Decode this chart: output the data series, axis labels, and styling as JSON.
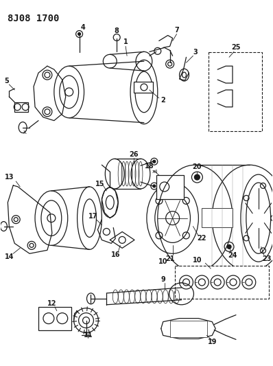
{
  "title": "8J08 1700",
  "bg_color": "#ffffff",
  "line_color": "#1a1a1a",
  "title_fontsize": 10,
  "label_fontsize": 7,
  "figsize": [
    3.98,
    5.33
  ],
  "dpi": 100
}
